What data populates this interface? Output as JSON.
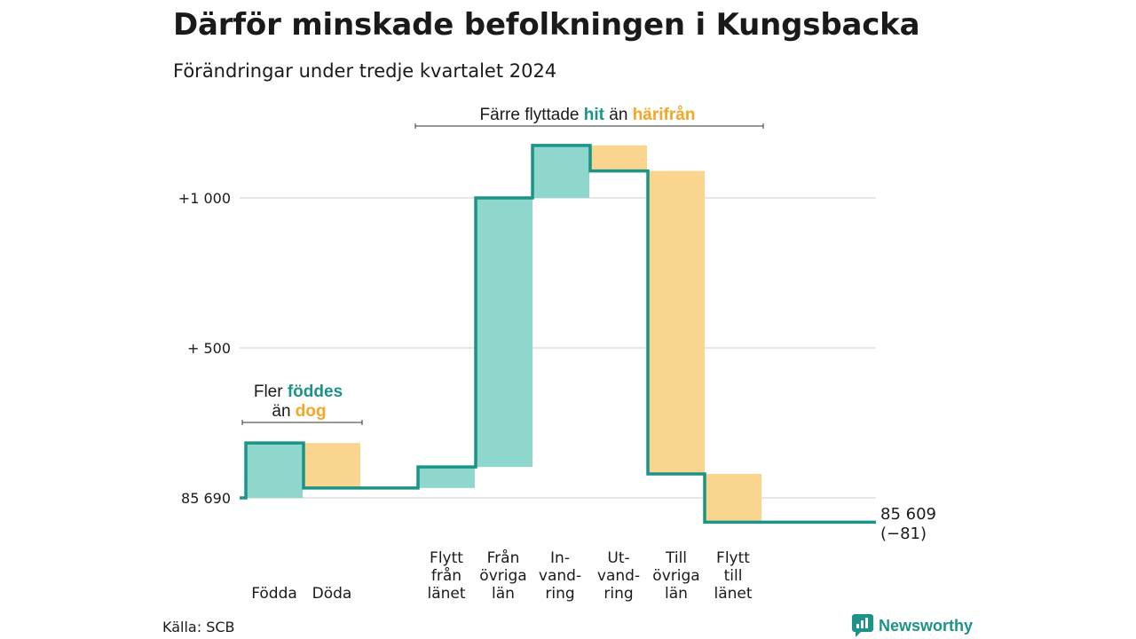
{
  "title": "Därför minskade befolkningen i Kungsbacka",
  "subtitle": "Förändringar under tredje kvartalet 2024",
  "source": "Källa: SCB",
  "brand": "Newsworthy",
  "colors": {
    "inflow": "#8fd6cd",
    "outflow": "#fad58f",
    "line": "#1b9487",
    "grid": "#dddddd"
  },
  "chart_data": {
    "type": "bar",
    "subtype": "waterfall",
    "start_value": 85690,
    "end_value": 85609,
    "end_label": "85 609",
    "end_change_label": "(−81)",
    "y_axis": {
      "ylim_change": [
        -120,
        1180
      ],
      "ticks": [
        {
          "value": 0,
          "label": "85 690"
        },
        {
          "value": 500,
          "label": "+  500"
        },
        {
          "value": 1000,
          "label": "+1 000"
        }
      ],
      "grid": true
    },
    "steps": [
      {
        "key": "fodda",
        "label_lines": [
          "Födda"
        ],
        "change": 183,
        "kind": "inflow"
      },
      {
        "key": "doda",
        "label_lines": [
          "Döda"
        ],
        "change": -150,
        "kind": "outflow"
      },
      {
        "key": "flytt_fran_lanet",
        "label_lines": [
          "Flytt",
          "från",
          "länet"
        ],
        "change": 70,
        "kind": "inflow"
      },
      {
        "key": "fran_ovriga_lan",
        "label_lines": [
          "Från",
          "övriga",
          "län"
        ],
        "change": 897,
        "kind": "inflow"
      },
      {
        "key": "invandring",
        "label_lines": [
          "In-",
          "vand-",
          "ring"
        ],
        "change": 175,
        "kind": "inflow"
      },
      {
        "key": "utvandring",
        "label_lines": [
          "Ut-",
          "vand-",
          "ring"
        ],
        "change": -85,
        "kind": "outflow"
      },
      {
        "key": "till_ovriga_lan",
        "label_lines": [
          "Till",
          "övriga",
          "län"
        ],
        "change": -1010,
        "kind": "outflow"
      },
      {
        "key": "flytt_till_lanet",
        "label_lines": [
          "Flytt",
          "till",
          "länet"
        ],
        "change": -161,
        "kind": "outflow"
      }
    ],
    "annotations": {
      "births": {
        "line1_prefix": "Fler ",
        "line1_highlight": "föddes",
        "line2_prefix": "än ",
        "line2_highlight": "dog"
      },
      "migration": {
        "prefix": "Färre flyttade ",
        "highlight1": "hit",
        "middle": " än ",
        "highlight2": "härifrån"
      }
    }
  }
}
